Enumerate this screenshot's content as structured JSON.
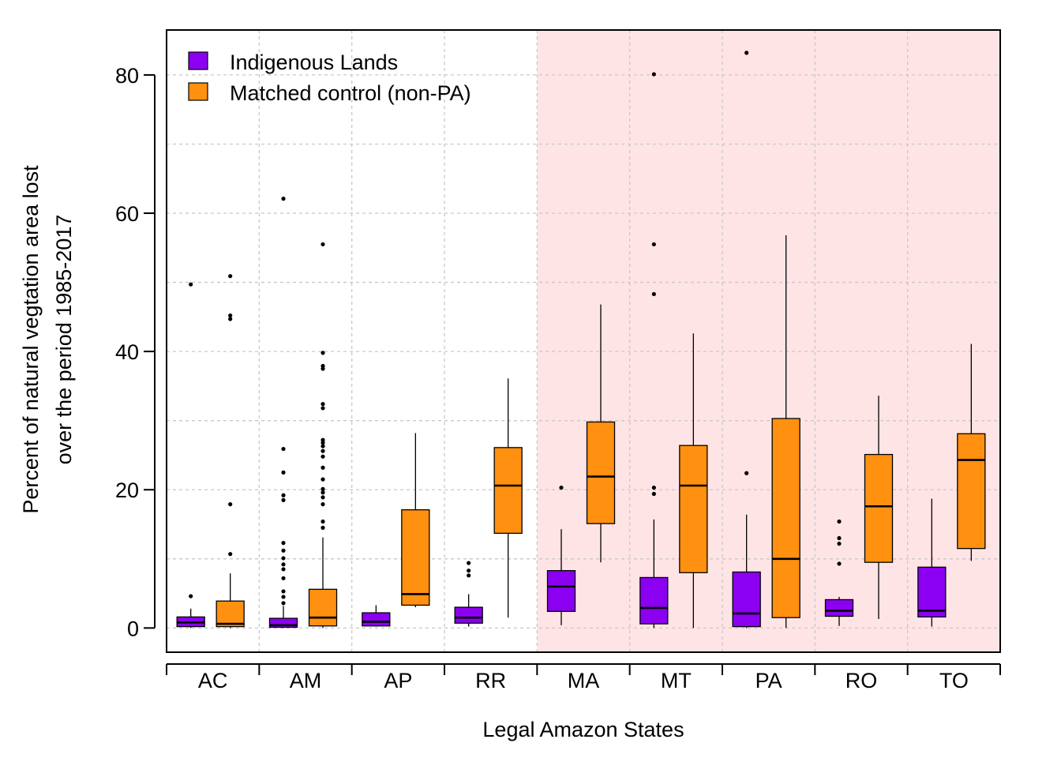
{
  "chart_data": {
    "type": "box",
    "xlabel": "Legal Amazon States",
    "ylabel_lines": [
      "Percent of natural vegtation area lost",
      "over the period 1985-2017"
    ],
    "ylim": [
      -3.5,
      86.5
    ],
    "yticks": [
      0,
      20,
      40,
      60,
      80
    ],
    "grid": true,
    "legend_position": "top-left",
    "shaded_region": {
      "from_category": "MA",
      "to_category": "TO",
      "color": "#ffe4e6"
    },
    "categories": [
      "AC",
      "AM",
      "AP",
      "RR",
      "MA",
      "MT",
      "PA",
      "RO",
      "TO"
    ],
    "series": [
      {
        "name": "Indigenous Lands",
        "color": "#8b00f0",
        "boxes": [
          {
            "category": "AC",
            "whisker_low": 0.0,
            "q1": 0.2,
            "median": 0.8,
            "q3": 1.6,
            "whisker_high": 2.8,
            "outliers": [
              4.6,
              49.7
            ]
          },
          {
            "category": "AM",
            "whisker_low": 0.0,
            "q1": 0.1,
            "median": 0.4,
            "q3": 1.4,
            "whisker_high": 3.2,
            "outliers": [
              3.6,
              4.5,
              5.3,
              7.2,
              8.5,
              9.2,
              10.1,
              11.2,
              12.3,
              18.5,
              19.2,
              22.5,
              25.9,
              62.1
            ]
          },
          {
            "category": "AP",
            "whisker_low": 0.2,
            "q1": 0.3,
            "median": 0.9,
            "q3": 2.2,
            "whisker_high": 3.3,
            "outliers": []
          },
          {
            "category": "RR",
            "whisker_low": 0.2,
            "q1": 0.7,
            "median": 1.5,
            "q3": 3.0,
            "whisker_high": 4.9,
            "outliers": [
              7.6,
              8.3,
              9.4
            ]
          },
          {
            "category": "MA",
            "whisker_low": 0.4,
            "q1": 2.4,
            "median": 6.0,
            "q3": 8.3,
            "whisker_high": 14.3,
            "outliers": [
              20.3
            ]
          },
          {
            "category": "MT",
            "whisker_low": 0.0,
            "q1": 0.6,
            "median": 2.9,
            "q3": 7.3,
            "whisker_high": 15.7,
            "outliers": [
              19.4,
              20.3,
              48.3,
              55.5,
              80.1
            ]
          },
          {
            "category": "PA",
            "whisker_low": 0.0,
            "q1": 0.2,
            "median": 2.1,
            "q3": 8.1,
            "whisker_high": 16.4,
            "outliers": [
              22.4,
              83.2
            ]
          },
          {
            "category": "RO",
            "whisker_low": 0.3,
            "q1": 1.7,
            "median": 2.5,
            "q3": 4.1,
            "whisker_high": 4.5,
            "outliers": [
              9.3,
              12.2,
              13.0,
              15.4
            ]
          },
          {
            "category": "TO",
            "whisker_low": 0.2,
            "q1": 1.6,
            "median": 2.5,
            "q3": 8.8,
            "whisker_high": 18.7,
            "outliers": []
          }
        ]
      },
      {
        "name": "Matched control (non-PA)",
        "color": "#ff9010",
        "boxes": [
          {
            "category": "AC",
            "whisker_low": 0.0,
            "q1": 0.2,
            "median": 0.6,
            "q3": 3.9,
            "whisker_high": 7.9,
            "outliers": [
              10.7,
              17.9,
              44.7,
              45.2,
              50.9
            ]
          },
          {
            "category": "AM",
            "whisker_low": 0.0,
            "q1": 0.3,
            "median": 1.5,
            "q3": 5.6,
            "whisker_high": 13.1,
            "outliers": [
              14.5,
              15.4,
              17.9,
              18.9,
              19.6,
              20.1,
              21.5,
              23.2,
              24.8,
              25.6,
              26.3,
              26.8,
              27.2,
              31.8,
              32.4,
              37.5,
              37.9,
              39.8,
              55.5
            ]
          },
          {
            "category": "AP",
            "whisker_low": 3.0,
            "q1": 3.3,
            "median": 4.9,
            "q3": 17.1,
            "whisker_high": 28.2,
            "outliers": []
          },
          {
            "category": "RR",
            "whisker_low": 1.5,
            "q1": 13.7,
            "median": 20.6,
            "q3": 26.1,
            "whisker_high": 36.1,
            "outliers": []
          },
          {
            "category": "MA",
            "whisker_low": 9.5,
            "q1": 15.1,
            "median": 21.9,
            "q3": 29.8,
            "whisker_high": 46.8,
            "outliers": []
          },
          {
            "category": "MT",
            "whisker_low": 0.0,
            "q1": 8.0,
            "median": 20.6,
            "q3": 26.4,
            "whisker_high": 42.6,
            "outliers": []
          },
          {
            "category": "PA",
            "whisker_low": 0.0,
            "q1": 1.5,
            "median": 10.0,
            "q3": 30.3,
            "whisker_high": 56.8,
            "outliers": []
          },
          {
            "category": "RO",
            "whisker_low": 1.3,
            "q1": 9.5,
            "median": 17.6,
            "q3": 25.1,
            "whisker_high": 33.6,
            "outliers": []
          },
          {
            "category": "TO",
            "whisker_low": 9.7,
            "q1": 11.5,
            "median": 24.3,
            "q3": 28.1,
            "whisker_high": 41.1,
            "outliers": []
          }
        ]
      }
    ]
  }
}
